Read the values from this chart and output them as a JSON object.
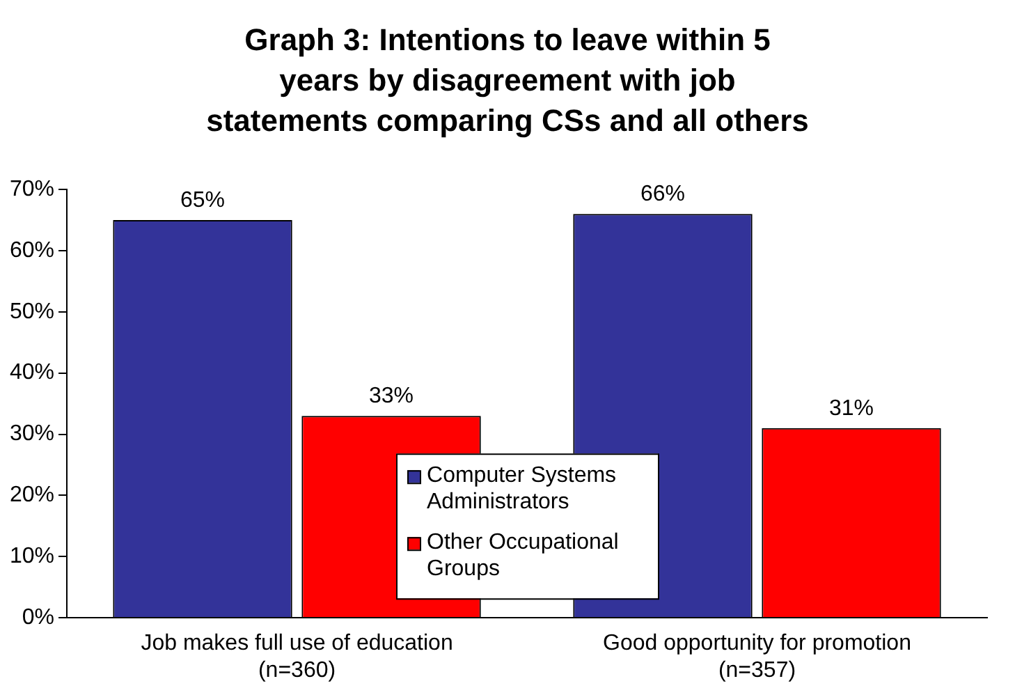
{
  "chart_data": {
    "type": "bar",
    "title": "Graph 3: Intentions to leave within 5 years by disagreement with job statements comparing CSs and all others",
    "categories": [
      "Job makes full use of education\n(n=360)",
      "Good opportunity for promotion\n(n=357)"
    ],
    "series": [
      {
        "name": "Computer Systems Administrators",
        "color": "#333399",
        "values": [
          65,
          66
        ],
        "value_labels": [
          "65%",
          "66%"
        ]
      },
      {
        "name": "Other Occupational Groups",
        "color": "#ff0000",
        "values": [
          33,
          31
        ],
        "value_labels": [
          "33%",
          "31%"
        ]
      }
    ],
    "ylim": [
      0,
      70
    ],
    "yticks": [
      {
        "value": 0,
        "label": "0%"
      },
      {
        "value": 10,
        "label": "10%"
      },
      {
        "value": 20,
        "label": "20%"
      },
      {
        "value": 30,
        "label": "30%"
      },
      {
        "value": 40,
        "label": "40%"
      },
      {
        "value": 50,
        "label": "50%"
      },
      {
        "value": 60,
        "label": "60%"
      },
      {
        "value": 70,
        "label": "70%"
      }
    ],
    "grid": false,
    "legend": "bottom"
  }
}
